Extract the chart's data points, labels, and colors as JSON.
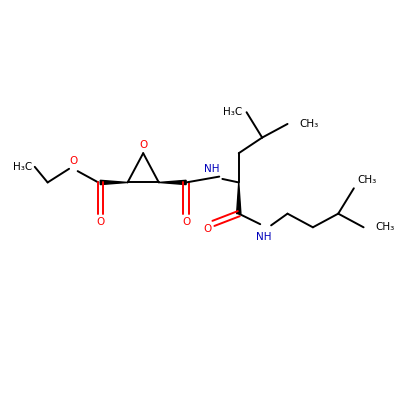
{
  "background": "#ffffff",
  "figsize": [
    4.0,
    4.0
  ],
  "dpi": 100,
  "bond_color": "#000000",
  "oxygen_color": "#ff0000",
  "nitrogen_color": "#0000bb",
  "bond_width": 1.4,
  "xlim": [
    0,
    10
  ],
  "ylim": [
    0,
    10
  ],
  "labels": {
    "h3c_eth": "H₃C",
    "o_ester": "O",
    "o_carbonyl1": "O",
    "o_epoxide": "O",
    "o_carbonyl2": "O",
    "nh1": "NH",
    "h3c_sc1": "H₃C",
    "ch3_sc2": "CH₃",
    "o_amide": "O",
    "nh2": "NH",
    "ch3_ia1": "CH₃",
    "ch3_ia2": "CH₃"
  }
}
